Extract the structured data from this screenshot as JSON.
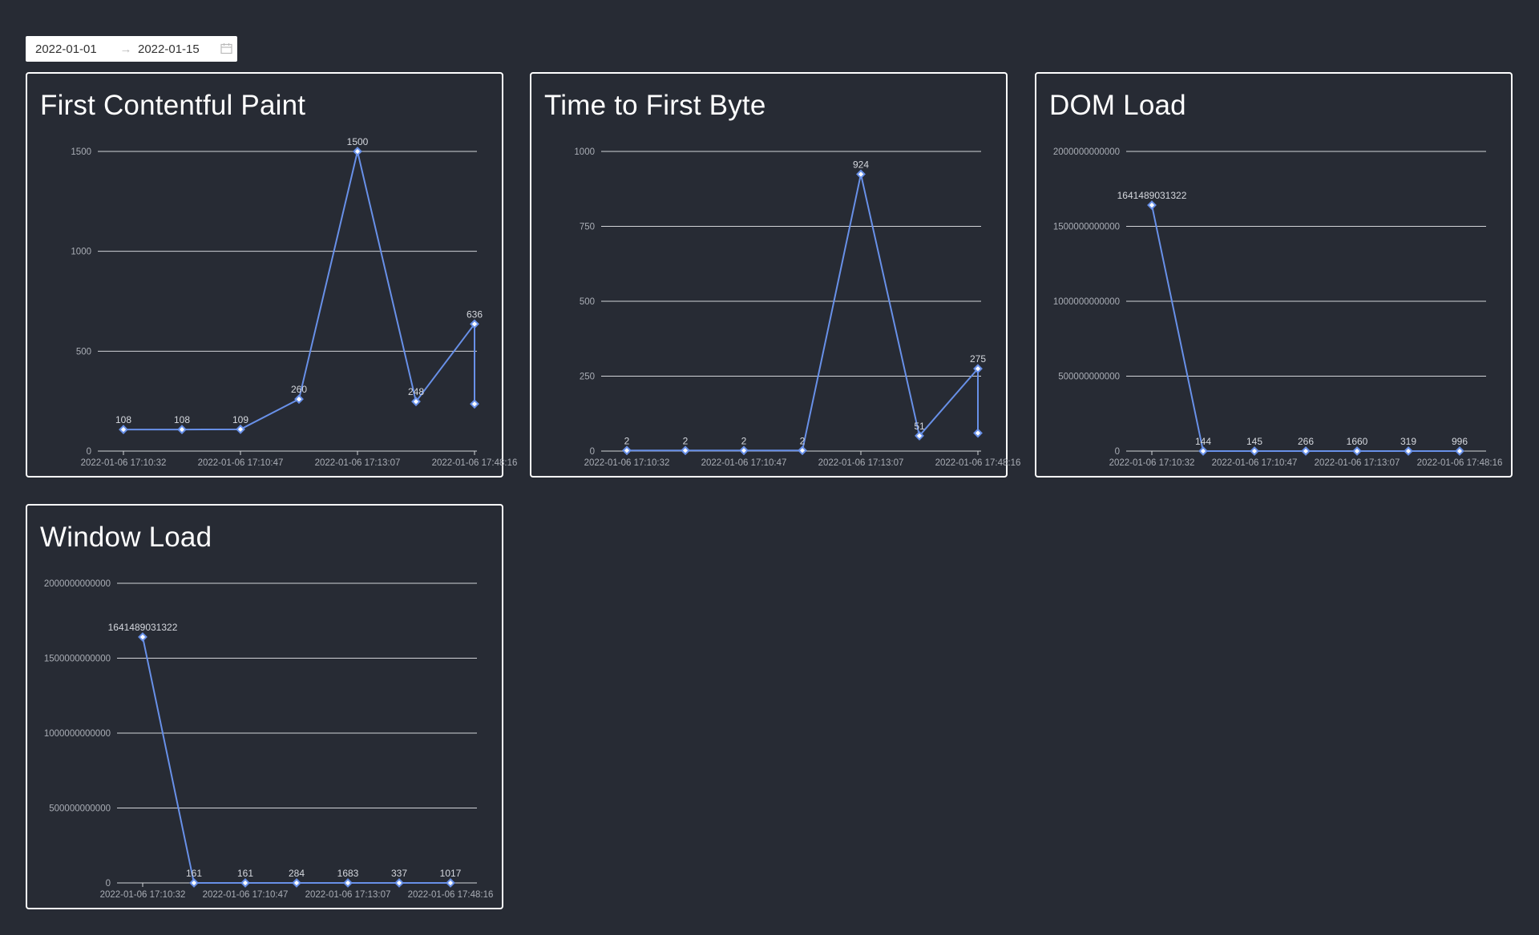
{
  "date_range": {
    "start": "2022-01-01",
    "end": "2022-01-15",
    "arrow": "→"
  },
  "chart_data": [
    {
      "type": "line",
      "title": "First Contentful Paint",
      "categories": [
        "2022-01-06 17:10:32",
        "2022-01-06 17:10:47",
        "2022-01-06 17:13:07",
        "2022-01-06 17:48:16"
      ],
      "x": [
        0,
        1,
        2,
        3,
        4,
        5,
        6,
        6
      ],
      "values": [
        108,
        108,
        109,
        260,
        1500,
        248,
        636,
        236
      ],
      "labels": [
        "108",
        "108",
        "109",
        "260",
        "1500",
        "248",
        "636",
        ""
      ],
      "yticks": [
        "0",
        "500",
        "1000",
        "1500"
      ],
      "ylim": [
        0,
        1500
      ],
      "xlabel": "",
      "ylabel": ""
    },
    {
      "type": "line",
      "title": "Time to First Byte",
      "categories": [
        "2022-01-06 17:10:32",
        "2022-01-06 17:10:47",
        "2022-01-06 17:13:07",
        "2022-01-06 17:48:16"
      ],
      "x": [
        0,
        1,
        2,
        3,
        4,
        5,
        6,
        6
      ],
      "values": [
        2,
        2,
        2,
        2,
        924,
        51,
        275,
        60
      ],
      "labels": [
        "2",
        "2",
        "2",
        "2",
        "924",
        "51",
        "275",
        ""
      ],
      "yticks": [
        "0",
        "250",
        "500",
        "750",
        "1000"
      ],
      "ylim": [
        0,
        1000
      ],
      "xlabel": "",
      "ylabel": ""
    },
    {
      "type": "line",
      "title": "DOM Load",
      "categories": [
        "2022-01-06 17:10:32",
        "2022-01-06 17:10:47",
        "2022-01-06 17:13:07",
        "2022-01-06 17:48:16"
      ],
      "x": [
        0,
        1,
        2,
        3,
        4,
        5,
        6
      ],
      "values": [
        1641489031322,
        144,
        145,
        266,
        1660,
        319,
        996
      ],
      "labels": [
        "1641489031322",
        "144",
        "145",
        "266",
        "1660",
        "319",
        "996"
      ],
      "yticks": [
        "0",
        "500000000000",
        "1000000000000",
        "1500000000000",
        "2000000000000"
      ],
      "ylim": [
        0,
        2000000000000
      ],
      "xlabel": "",
      "ylabel": ""
    },
    {
      "type": "line",
      "title": "Window Load",
      "categories": [
        "2022-01-06 17:10:32",
        "2022-01-06 17:10:47",
        "2022-01-06 17:13:07",
        "2022-01-06 17:48:16"
      ],
      "x": [
        0,
        1,
        2,
        3,
        4,
        5,
        6
      ],
      "values": [
        1641489031322,
        161,
        161,
        284,
        1683,
        337,
        1017
      ],
      "labels": [
        "1641489031322",
        "161",
        "161",
        "284",
        "1683",
        "337",
        "1017"
      ],
      "yticks": [
        "0",
        "500000000000",
        "1000000000000",
        "1500000000000",
        "2000000000000"
      ],
      "ylim": [
        0,
        2000000000000
      ],
      "xlabel": "",
      "ylabel": ""
    }
  ]
}
